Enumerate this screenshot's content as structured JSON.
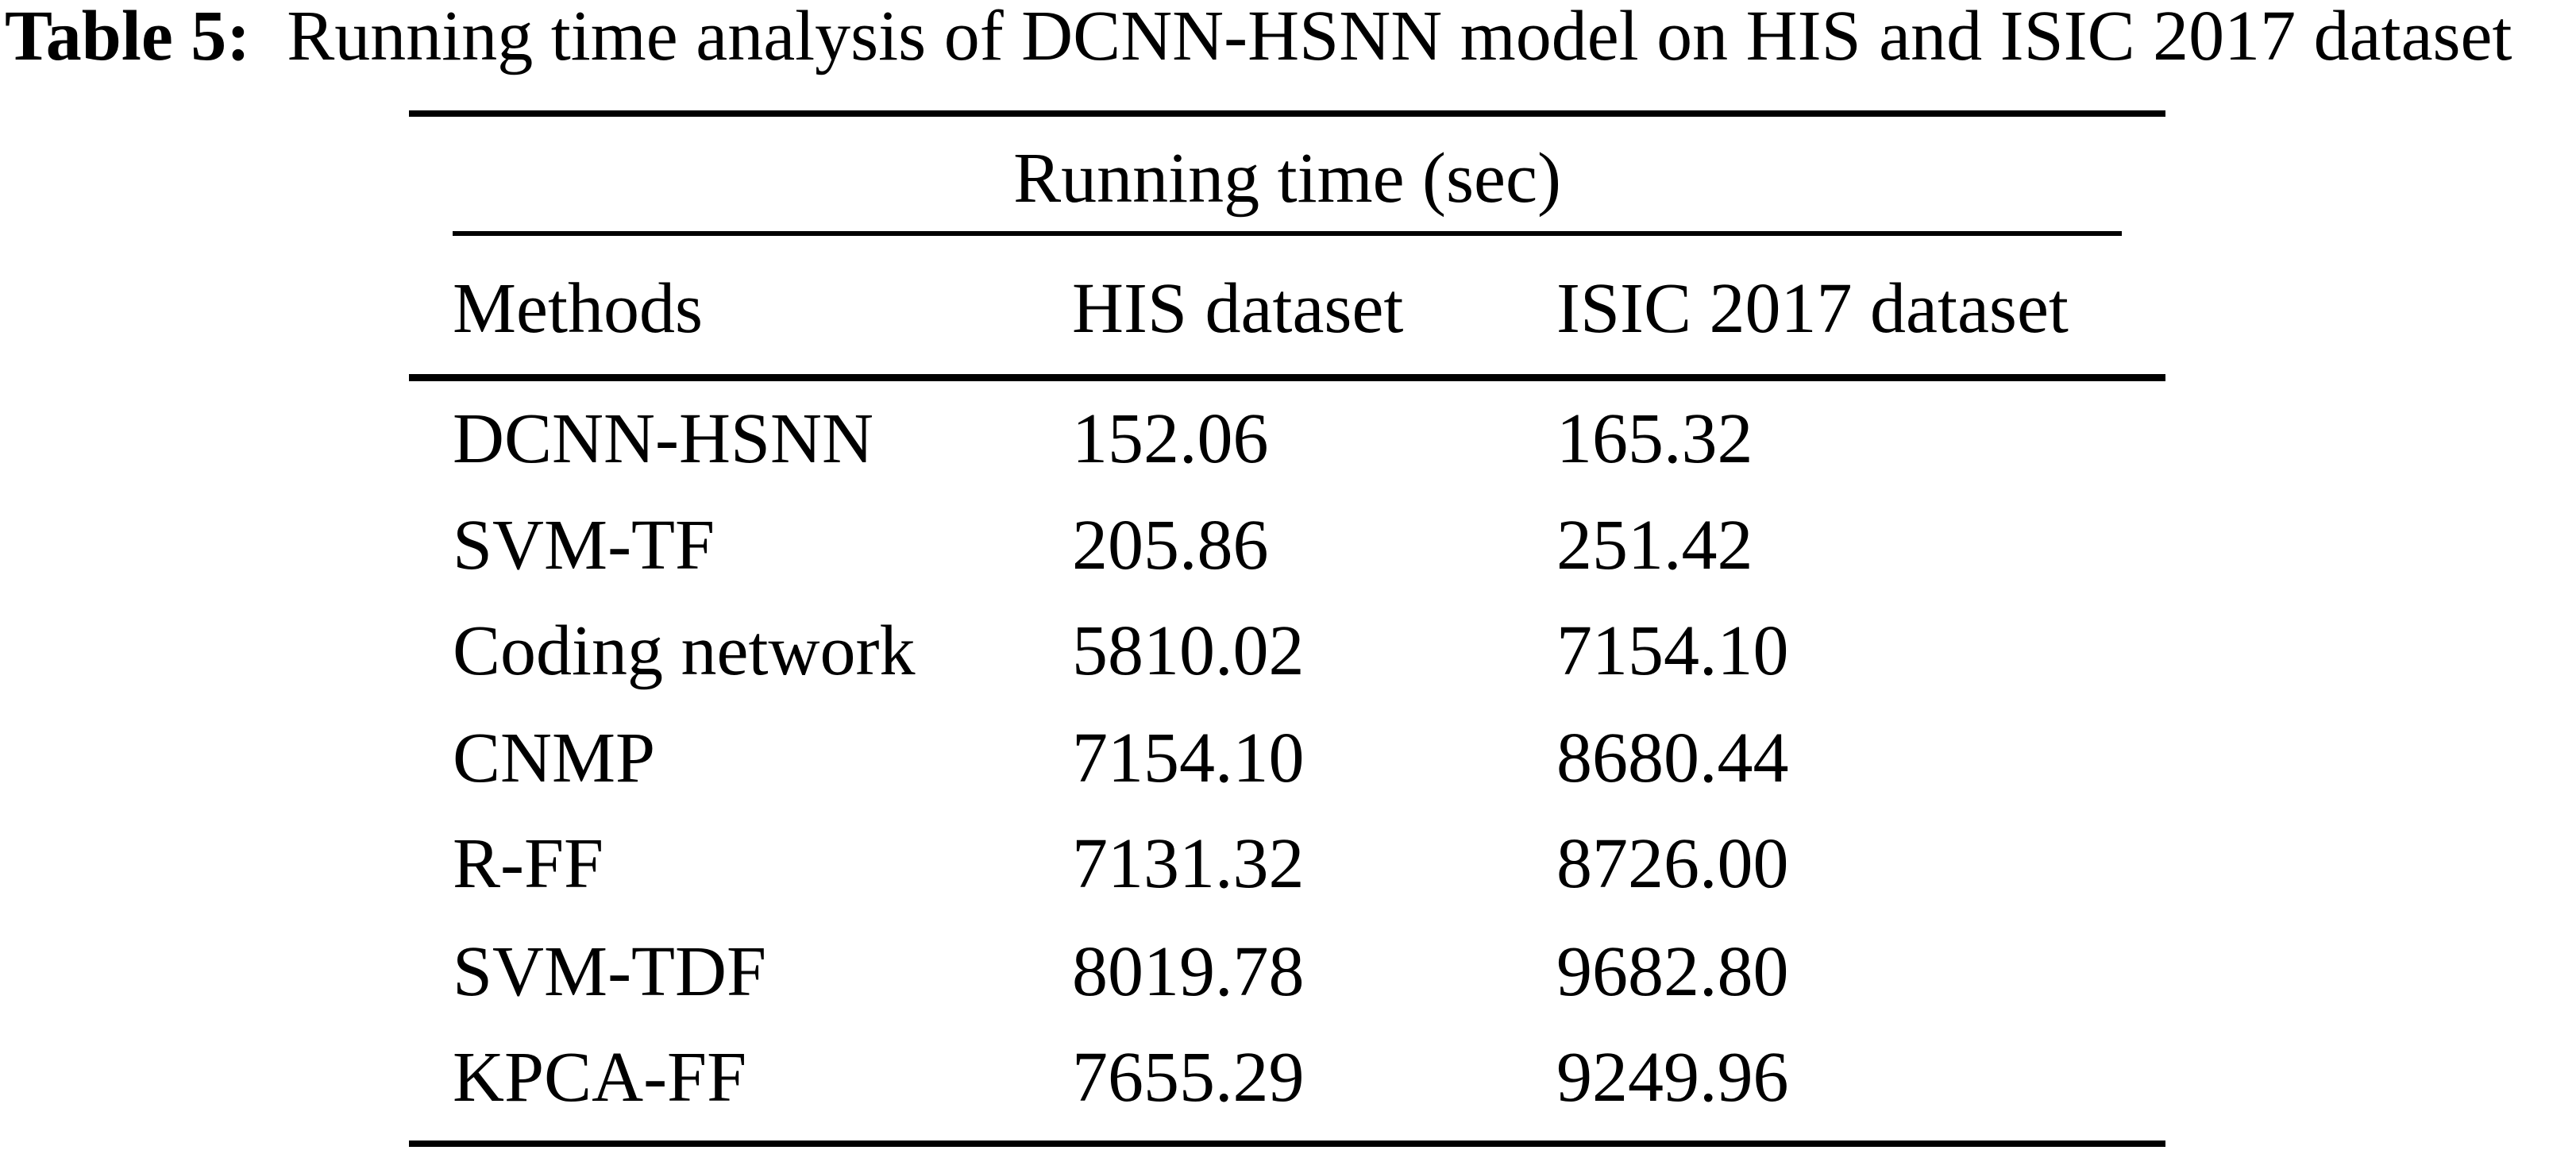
{
  "page": {
    "background": "#ffffff",
    "text_color": "#000000"
  },
  "caption": {
    "label": "Table 5:",
    "text": "Running time analysis of DCNN-HSNN model on HIS and ISIC 2017 dataset"
  },
  "table": {
    "spanner": "Running time (sec)",
    "columns": [
      "Methods",
      "HIS dataset",
      "ISIC 2017 dataset"
    ],
    "rows": [
      {
        "method": "DCNN-HSNN",
        "his": "152.06",
        "isic": "165.32"
      },
      {
        "method": "SVM-TF",
        "his": "205.86",
        "isic": "251.42"
      },
      {
        "method": "Coding network",
        "his": "5810.02",
        "isic": "7154.10"
      },
      {
        "method": "CNMP",
        "his": "7154.10",
        "isic": "8680.44"
      },
      {
        "method": "R-FF",
        "his": "7131.32",
        "isic": "8726.00"
      },
      {
        "method": "SVM-TDF",
        "his": "8019.78",
        "isic": "9682.80"
      },
      {
        "method": "KPCA-FF",
        "his": "7655.29",
        "isic": "9249.96"
      }
    ]
  },
  "chart_data": {
    "type": "table",
    "title": "Running time (sec)",
    "categories": [
      "DCNN-HSNN",
      "SVM-TF",
      "Coding network",
      "CNMP",
      "R-FF",
      "SVM-TDF",
      "KPCA-FF"
    ],
    "series": [
      {
        "name": "HIS dataset",
        "values": [
          152.06,
          205.86,
          5810.02,
          7154.1,
          7131.32,
          8019.78,
          7655.29
        ]
      },
      {
        "name": "ISIC 2017 dataset",
        "values": [
          165.32,
          251.42,
          7154.1,
          8680.44,
          8726.0,
          9682.8,
          9249.96
        ]
      }
    ]
  }
}
